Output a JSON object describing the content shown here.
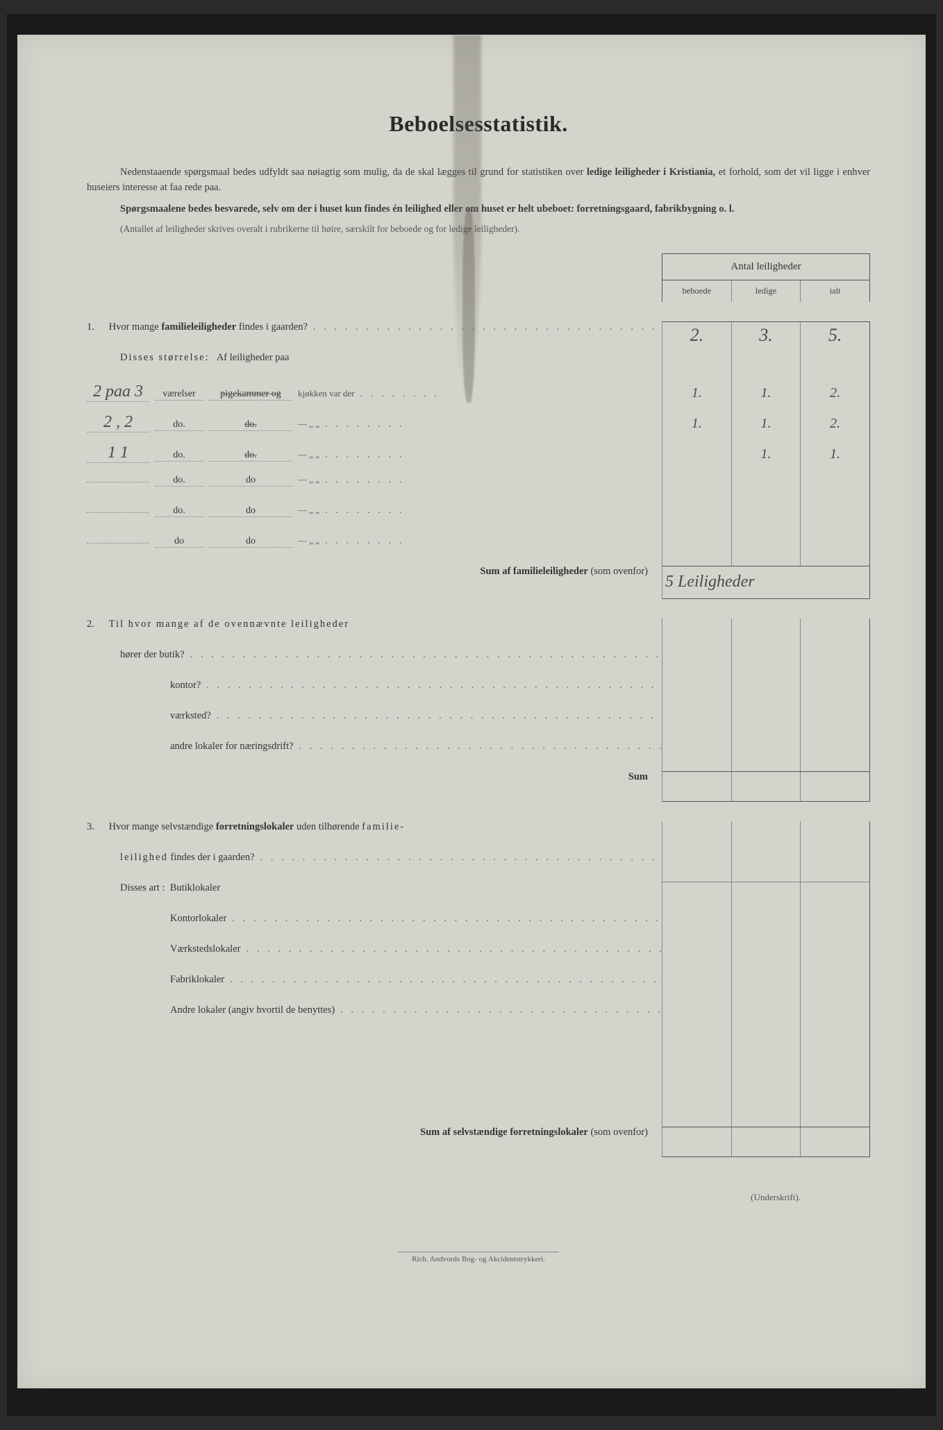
{
  "title": "Beboelsesstatistik.",
  "intro1_a": "Nedenstaaende spørgsmaal bedes udfyldt saa nøiagtig som mulig, da de skal lægges til grund for statistiken over ",
  "intro1_b": "ledige leiligheder i Kristiania,",
  "intro1_c": " et forhold, som det vil ligge i enhver huseiers interesse at faa rede paa.",
  "intro2_a": "Spørgsmaalene bedes besvarede, selv om der i huset kun findes én leilighed eller om huset er helt ubeboet: forretningsgaard, fabrikbygning o. l.",
  "note": "(Antallet af leiligheder skrives overalt i rubrikerne til høire, særskilt for beboede og for ledige leiligheder).",
  "header": {
    "main": "Antal leiligheder",
    "cols": [
      "beboede",
      "ledige",
      "ialt"
    ]
  },
  "q1": {
    "num": "1.",
    "text": "Hvor mange familieleiligheder findes i gaarden?",
    "vals": [
      "2.",
      "3.",
      "5."
    ],
    "sub_a": "Disses størrelse:",
    "sub_b": "Af leiligheder paa",
    "rows": [
      {
        "hw1": "2 paa 3",
        "t1": "værelser",
        "t2": "pigekammer og",
        "t2strike": true,
        "t3": "kjøkken var der",
        "v": [
          "1.",
          "1.",
          "2."
        ]
      },
      {
        "hw1": "2 , 2",
        "t1": "do.",
        "t2": "do.",
        "t2strike": true,
        "t3": "—   „   „",
        "v": [
          "1.",
          "1.",
          "2."
        ]
      },
      {
        "hw1": "1   1",
        "t1": "do.",
        "t2": "do.",
        "t2strike": true,
        "t3": "—   „   „",
        "v": [
          "",
          "1.",
          "1."
        ]
      },
      {
        "hw1": "",
        "t1": "do.",
        "t2": "do",
        "t2strike": false,
        "t3": "—   „   „",
        "v": [
          "",
          "",
          ""
        ]
      },
      {
        "hw1": "",
        "t1": "do.",
        "t2": "do",
        "t2strike": false,
        "t3": "—   „   „",
        "v": [
          "",
          "",
          ""
        ]
      },
      {
        "hw1": "",
        "t1": "do",
        "t2": "do",
        "t2strike": false,
        "t3": "—   „   „",
        "v": [
          "",
          "",
          ""
        ]
      }
    ],
    "sum_label": "Sum af familieleiligheder",
    "sum_paren": "(som ovenfor)",
    "sum_hw": "5 Leiligheder"
  },
  "q2": {
    "num": "2.",
    "text_a": "Til hvor mange af de ovennævnte leiligheder",
    "lines": [
      "hører der butik?",
      "kontor?",
      "værksted?",
      "andre lokaler for næringsdrift?"
    ],
    "sum": "Sum"
  },
  "q3": {
    "num": "3.",
    "text_a": "Hvor mange selvstændige forretningslokaler uden tilhørende familie-",
    "text_b": "leilighed findes der i gaarden?",
    "sub": "Disses art :",
    "lines": [
      "Butiklokaler",
      "Kontorlokaler",
      "Værkstedslokaler",
      "Fabriklokaler",
      "Andre lokaler (angiv hvortil de benyttes)"
    ],
    "sum_label": "Sum af selvstændige forretningslokaler",
    "sum_paren": "(som ovenfor)"
  },
  "underskrift": "(Underskrift).",
  "footer": "Rich. Andvords Bog- og Akcidentstrykkeri.",
  "colors": {
    "page_bg": "#d4d4cc",
    "frame_bg": "#1a1a1a",
    "text": "#333333",
    "handwriting": "#4a4a4a",
    "border": "#555555"
  }
}
